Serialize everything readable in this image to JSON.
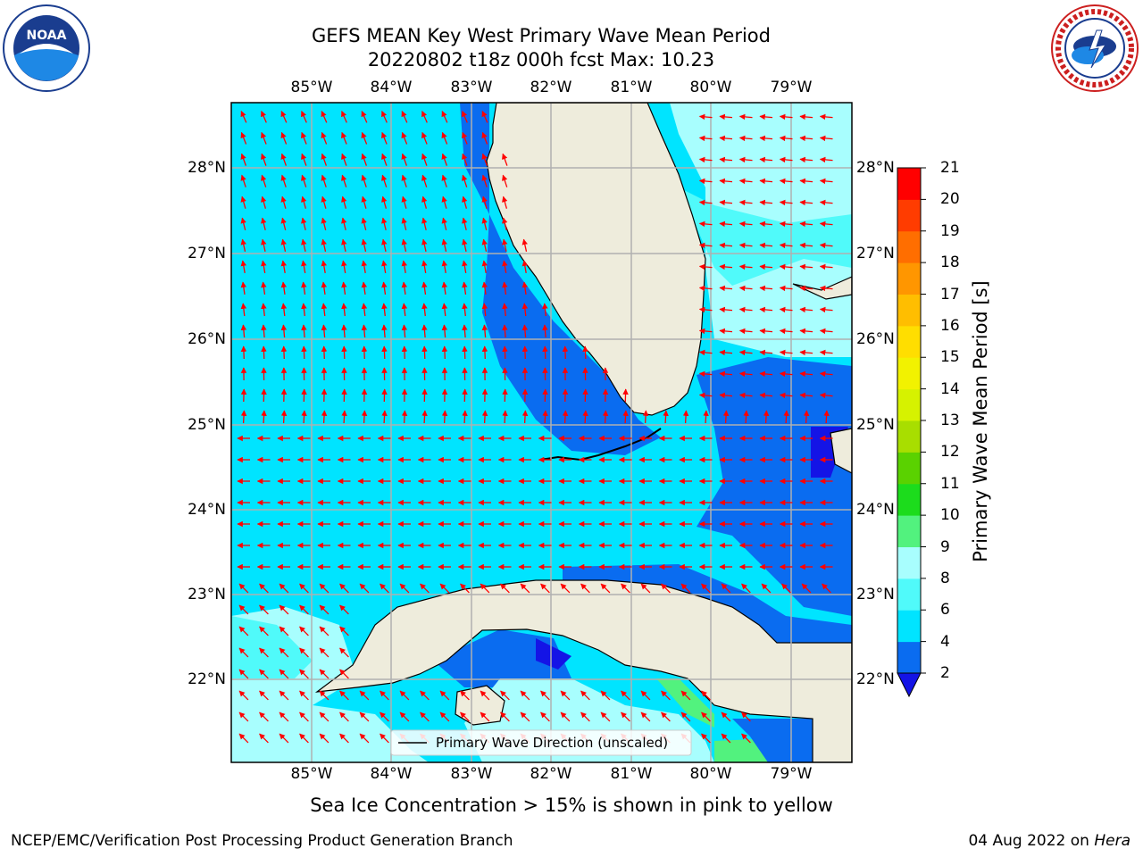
{
  "title": {
    "line1": "GEFS MEAN Key West Primary Wave Mean Period",
    "line2": "20220802 t18z 000h fcst   Max: 10.23"
  },
  "logos": {
    "left": "NOAA",
    "left_ring_text": "NATIONAL OCEANIC AND ATMOSPHERIC ADMINISTRATION · U.S. DEPARTMENT OF COMMERCE",
    "right_ring_text": "NATIONAL WEATHER SERVICE"
  },
  "axes": {
    "lon_labels": [
      "85°W",
      "84°W",
      "83°W",
      "82°W",
      "81°W",
      "80°W",
      "79°W"
    ],
    "lat_labels": [
      "28°N",
      "27°N",
      "26°N",
      "25°N",
      "24°N",
      "23°N",
      "22°N"
    ]
  },
  "legend": {
    "label": "Primary Wave Direction (unscaled)"
  },
  "colorbar": {
    "label": "Primary Wave Mean Period [s]",
    "ticks": [
      "2",
      "4",
      "6",
      "8",
      "9",
      "10",
      "11",
      "12",
      "13",
      "14",
      "15",
      "16",
      "17",
      "18",
      "19",
      "20",
      "21"
    ],
    "colors": [
      "#0a6cf0",
      "#00e4ff",
      "#50fafa",
      "#a8fefe",
      "#52f27e",
      "#1cdc1c",
      "#5ad200",
      "#a8de00",
      "#d6f200",
      "#f2f200",
      "#ffde00",
      "#ffbe00",
      "#ff9600",
      "#ff6e00",
      "#ff3c00",
      "#ff0000"
    ],
    "under_color": "#1414e6"
  },
  "note": "Sea Ice Concentration > 15% is shown in pink to yellow",
  "footer": {
    "left": "NCEP/EMC/Verification Post Processing Product Generation Branch",
    "date": "04 Aug 2022 on ",
    "host": "Hera"
  },
  "chart_data": {
    "type": "heatmap",
    "variable": "Primary Wave Mean Period",
    "units": "s",
    "model": "GEFS MEAN",
    "region": "Key West",
    "cycle": "20220802 t18z",
    "forecast_hour": "000h",
    "max_value": 10.23,
    "lon_range": [
      -86.0,
      -78.3
    ],
    "lat_range": [
      21.0,
      28.8
    ],
    "colorbar_range": [
      2,
      21
    ],
    "regions_approx": [
      {
        "area": "Eastern Gulf of Mexico / Florida Straits",
        "period_band": "4-6"
      },
      {
        "area": "West Florida shelf near coast",
        "period_band": "2-4"
      },
      {
        "area": "Atlantic east of Florida / Bahamas",
        "period_band": "6-9"
      },
      {
        "area": "NW Bahamas / Great Bahama Bank",
        "period_band": "2-4"
      },
      {
        "area": "Gulf of Batabano (south Cuba)",
        "period_band": "9-10"
      }
    ],
    "arrow_direction_summary": "Primary wave direction mostly toward the west in the Florida Straits and toward the north-northwest in the eastern Gulf of Mexico"
  }
}
